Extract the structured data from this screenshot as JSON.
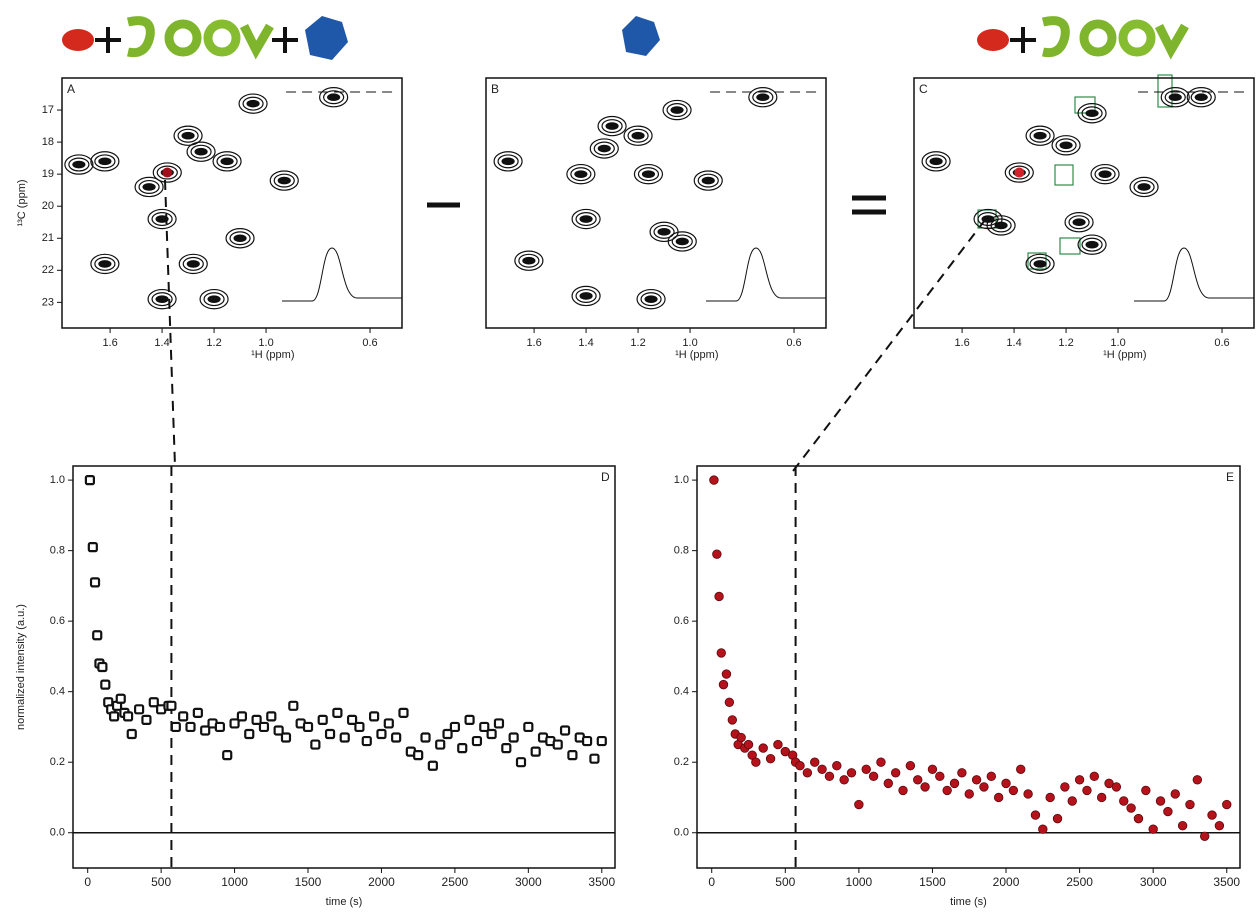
{
  "chart_data": [
    {
      "type": "contour",
      "panel": "A",
      "x_label": "¹H (ppm)",
      "y_label": "¹³C (ppm)",
      "xlim": [
        1.785,
        0.477
      ],
      "ylim": [
        16.0,
        23.8
      ],
      "xticks": [
        1.6,
        1.4,
        1.2,
        {
          "value": 1.0,
          "label": "1.0"
        },
        0.6
      ],
      "yticks": [
        17,
        18,
        19,
        20,
        21,
        22,
        23
      ],
      "peaks": {
        "x": [
          1.62,
          1.72,
          1.3,
          1.25,
          1.15,
          1.05,
          1.4,
          1.1,
          0.93,
          1.62,
          1.4,
          1.2,
          1.28,
          0.74,
          1.45
        ],
        "y": [
          18.6,
          18.7,
          17.8,
          18.3,
          18.6,
          16.8,
          20.4,
          21.0,
          19.2,
          21.8,
          22.9,
          22.9,
          21.8,
          16.6,
          19.4
        ]
      },
      "highlight": {
        "x": 1.38,
        "y": 18.95,
        "color": "#a0101a"
      },
      "color": "#111"
    },
    {
      "type": "contour",
      "panel": "B",
      "x_label": "¹H (ppm)",
      "xlim": [
        1.785,
        0.477
      ],
      "ylim": [
        16.0,
        23.8
      ],
      "xticks": [
        1.6,
        1.4,
        1.2,
        {
          "value": 1.0,
          "label": "1.0"
        },
        0.6
      ],
      "peaks": {
        "x": [
          1.7,
          1.42,
          1.3,
          1.2,
          1.16,
          1.05,
          0.93,
          1.4,
          1.1,
          1.62,
          1.4,
          1.15,
          0.72,
          1.33,
          1.03
        ],
        "y": [
          18.6,
          19.0,
          17.5,
          17.8,
          19.0,
          17.0,
          19.2,
          20.4,
          20.8,
          21.7,
          22.8,
          22.9,
          16.6,
          18.2,
          21.1
        ]
      },
      "color": "#111"
    },
    {
      "type": "contour",
      "panel": "C",
      "x_label": "¹H (ppm)",
      "xlim": [
        1.785,
        0.477
      ],
      "ylim": [
        16.0,
        23.8
      ],
      "xticks": [
        1.6,
        1.4,
        1.2,
        {
          "value": 1.0,
          "label": "1.0"
        },
        0.6
      ],
      "peaks": {
        "x": [
          1.7,
          1.3,
          1.2,
          1.5,
          1.45,
          1.15,
          1.1,
          1.3,
          0.78,
          1.1,
          1.05,
          0.9,
          0.68
        ],
        "y": [
          18.6,
          17.8,
          18.1,
          20.4,
          20.6,
          20.5,
          21.2,
          21.8,
          16.6,
          17.1,
          19.0,
          19.4,
          16.6
        ]
      },
      "highlight": {
        "x": 1.38,
        "y": 18.95,
        "color": "#d0202a"
      },
      "color": "#111"
    },
    {
      "type": "scatter",
      "panel": "D",
      "x_label": "time (s)",
      "y_label": "normalized intensity (a.u.)",
      "xlim": [
        -100,
        3590
      ],
      "ylim": [
        -0.1,
        1.04
      ],
      "xticks": [
        0,
        500,
        1000,
        1500,
        2000,
        2500,
        3000,
        3500
      ],
      "yticks": [
        {
          "value": 0.0,
          "label": "0.0"
        },
        0.2,
        0.4,
        0.6,
        0.8,
        {
          "value": 1.0,
          "label": "1.0"
        }
      ],
      "vline": 570,
      "marker": "square",
      "color": "#111",
      "x": [
        15,
        35,
        50,
        65,
        80,
        100,
        120,
        140,
        160,
        180,
        200,
        225,
        250,
        275,
        300,
        350,
        400,
        450,
        500,
        550,
        570,
        600,
        650,
        700,
        750,
        800,
        850,
        900,
        950,
        1000,
        1050,
        1100,
        1150,
        1200,
        1250,
        1300,
        1350,
        1400,
        1450,
        1500,
        1550,
        1600,
        1650,
        1700,
        1750,
        1800,
        1850,
        1900,
        1950,
        2000,
        2050,
        2100,
        2150,
        2200,
        2250,
        2300,
        2350,
        2400,
        2450,
        2500,
        2550,
        2600,
        2650,
        2700,
        2750,
        2800,
        2850,
        2900,
        2950,
        3000,
        3050,
        3100,
        3150,
        3200,
        3250,
        3300,
        3350,
        3400,
        3450,
        3500
      ],
      "values": [
        1.0,
        0.81,
        0.71,
        0.56,
        0.48,
        0.47,
        0.42,
        0.37,
        0.35,
        0.33,
        0.36,
        0.38,
        0.34,
        0.33,
        0.28,
        0.35,
        0.32,
        0.37,
        0.35,
        0.36,
        0.36,
        0.3,
        0.33,
        0.3,
        0.34,
        0.29,
        0.31,
        0.3,
        0.22,
        0.31,
        0.33,
        0.28,
        0.32,
        0.3,
        0.33,
        0.29,
        0.27,
        0.36,
        0.31,
        0.3,
        0.25,
        0.32,
        0.28,
        0.34,
        0.27,
        0.32,
        0.3,
        0.26,
        0.33,
        0.28,
        0.31,
        0.27,
        0.34,
        0.23,
        0.22,
        0.27,
        0.19,
        0.25,
        0.28,
        0.3,
        0.24,
        0.32,
        0.26,
        0.3,
        0.28,
        0.31,
        0.24,
        0.27,
        0.2,
        0.3,
        0.23,
        0.27,
        0.26,
        0.25,
        0.29,
        0.22,
        0.27,
        0.26,
        0.21,
        0.26
      ]
    },
    {
      "type": "scatter",
      "panel": "E",
      "x_label": "time (s)",
      "xlim": [
        -100,
        3590
      ],
      "ylim": [
        -0.1,
        1.04
      ],
      "xticks": [
        0,
        500,
        1000,
        1500,
        2000,
        2500,
        3000,
        3500
      ],
      "yticks": [
        {
          "value": 0.0,
          "label": "0.0"
        },
        0.2,
        0.4,
        0.6,
        0.8,
        {
          "value": 1.0,
          "label": "1.0"
        }
      ],
      "vline": 570,
      "marker": "circle",
      "color": "#b5121b",
      "x": [
        15,
        35,
        50,
        65,
        80,
        100,
        120,
        140,
        160,
        180,
        200,
        225,
        250,
        275,
        300,
        350,
        400,
        450,
        500,
        550,
        570,
        600,
        650,
        700,
        750,
        800,
        850,
        900,
        950,
        1000,
        1050,
        1100,
        1150,
        1200,
        1250,
        1300,
        1350,
        1400,
        1450,
        1500,
        1550,
        1600,
        1650,
        1700,
        1750,
        1800,
        1850,
        1900,
        1950,
        2000,
        2050,
        2100,
        2150,
        2200,
        2250,
        2300,
        2350,
        2400,
        2450,
        2500,
        2550,
        2600,
        2650,
        2700,
        2750,
        2800,
        2850,
        2900,
        2950,
        3000,
        3050,
        3100,
        3150,
        3200,
        3250,
        3300,
        3350,
        3400,
        3450,
        3500
      ],
      "values": [
        1.0,
        0.79,
        0.67,
        0.51,
        0.42,
        0.45,
        0.37,
        0.32,
        0.28,
        0.25,
        0.27,
        0.24,
        0.25,
        0.22,
        0.2,
        0.24,
        0.21,
        0.25,
        0.23,
        0.22,
        0.2,
        0.19,
        0.17,
        0.2,
        0.18,
        0.16,
        0.19,
        0.15,
        0.17,
        0.08,
        0.18,
        0.16,
        0.2,
        0.14,
        0.17,
        0.12,
        0.19,
        0.15,
        0.13,
        0.18,
        0.16,
        0.12,
        0.14,
        0.17,
        0.11,
        0.15,
        0.13,
        0.16,
        0.1,
        0.14,
        0.12,
        0.18,
        0.11,
        0.05,
        0.01,
        0.1,
        0.04,
        0.13,
        0.09,
        0.15,
        0.12,
        0.16,
        0.1,
        0.14,
        0.13,
        0.09,
        0.07,
        0.04,
        0.12,
        0.01,
        0.09,
        0.06,
        0.11,
        0.02,
        0.08,
        0.15,
        -0.01,
        0.05,
        0.02,
        0.08
      ]
    }
  ]
}
